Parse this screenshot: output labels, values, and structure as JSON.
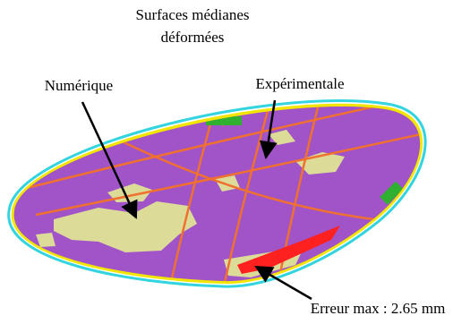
{
  "title": {
    "lines": [
      "Surfaces médianes",
      "déformées"
    ]
  },
  "labels": {
    "numerical": "Numérique",
    "experimental": "Expérimentale",
    "max_error": "Erreur max : 2.65 mm"
  }
}
